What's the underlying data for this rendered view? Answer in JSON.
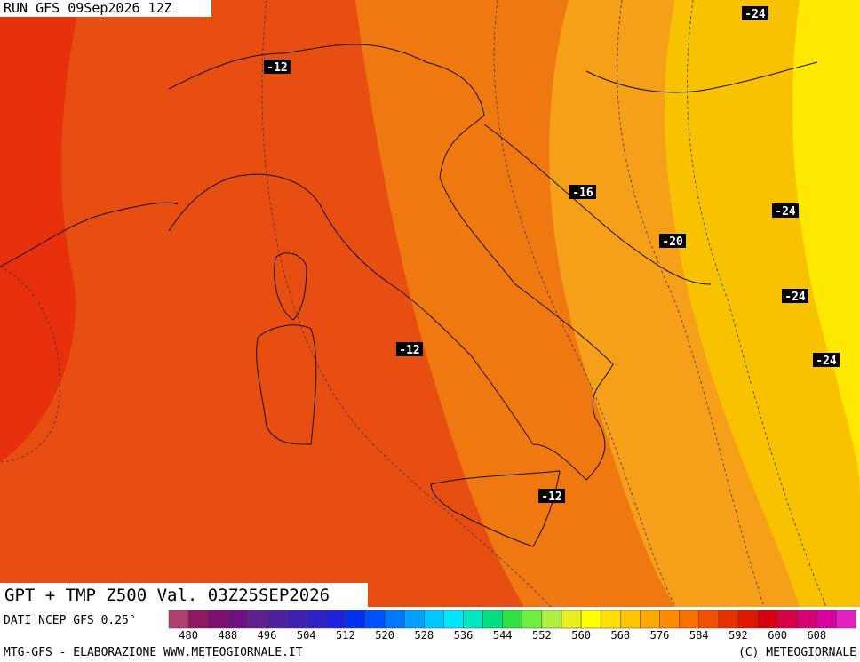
{
  "header": {
    "run": "RUN GFS 09Sep2026 12Z"
  },
  "title": "GPT + TMP Z500 Val. 03Z25SEP2026",
  "source": "DATI NCEP GFS 0.25°",
  "footer": {
    "left": "MTG-GFS - ELABORAZIONE WWW.METEOGIORNALE.IT",
    "right": "(C) METEOGIORNALE"
  },
  "contour_labels": [
    "-24",
    "-12",
    "-16",
    "-24",
    "-20",
    "-24",
    "-12",
    "-24",
    "-12"
  ],
  "colorbar": {
    "labels": [
      "480",
      "488",
      "496",
      "504",
      "512",
      "520",
      "528",
      "536",
      "544",
      "552",
      "560",
      "568",
      "576",
      "584",
      "592",
      "600",
      "608"
    ],
    "colors": [
      "#b04070",
      "#901860",
      "#801070",
      "#701080",
      "#602090",
      "#5020a0",
      "#4020b0",
      "#3020c8",
      "#2020e0",
      "#0030f0",
      "#0050ff",
      "#0078ff",
      "#00a0ff",
      "#00c8ff",
      "#00e8ff",
      "#00e8c0",
      "#00e080",
      "#30e040",
      "#70f040",
      "#b0f040",
      "#e8f020",
      "#ffff00",
      "#ffe000",
      "#ffc400",
      "#ffa800",
      "#ff8c00",
      "#f87000",
      "#f05000",
      "#e83000",
      "#e01800",
      "#d80010",
      "#d80040",
      "#d80070",
      "#d800a0",
      "#e020c0"
    ]
  }
}
